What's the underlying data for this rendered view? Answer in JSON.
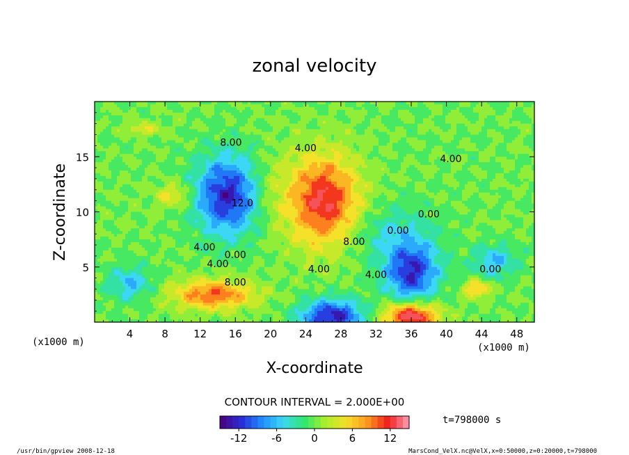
{
  "chart_data": {
    "type": "heatmap",
    "title": "zonal velocity",
    "xlabel": "X-coordinate",
    "ylabel": "Z-coordinate",
    "x_unit_label": "(x1000 m)",
    "z_unit_label": "(x1000 m)",
    "xlim": [
      0,
      50
    ],
    "ylim": [
      0,
      20
    ],
    "x_ticks": [
      4,
      8,
      12,
      16,
      20,
      24,
      28,
      32,
      36,
      40,
      44,
      48
    ],
    "y_ticks": [
      5,
      10,
      15
    ],
    "contour_interval_text": "CONTOUR INTERVAL = 2.000E+00",
    "contour_labels": [
      {
        "text": "8.00",
        "x": 15.5,
        "z": 16.0
      },
      {
        "text": "4.00",
        "x": 24.0,
        "z": 15.5
      },
      {
        "text": "4.00",
        "x": 40.5,
        "z": 14.5
      },
      {
        "text": "12.0",
        "x": 16.8,
        "z": 10.5
      },
      {
        "text": "0.00",
        "x": 34.5,
        "z": 8.0
      },
      {
        "text": "0.00",
        "x": 38.0,
        "z": 9.5
      },
      {
        "text": "8.00",
        "x": 29.5,
        "z": 7.0
      },
      {
        "text": "4.00",
        "x": 12.5,
        "z": 6.5
      },
      {
        "text": "0.00",
        "x": 16.0,
        "z": 5.8
      },
      {
        "text": "4.00",
        "x": 14.0,
        "z": 5.0
      },
      {
        "text": "4.00",
        "x": 25.5,
        "z": 4.5
      },
      {
        "text": "4.00",
        "x": 32.0,
        "z": 4.0
      },
      {
        "text": "8.00",
        "x": 16.0,
        "z": 3.3
      },
      {
        "text": "0.00",
        "x": 45.0,
        "z": 4.5
      }
    ],
    "features": [
      {
        "x": 26.0,
        "z": 11.0,
        "sx": 4.0,
        "sz": 4.0,
        "amp": 12.5
      },
      {
        "x": 15.0,
        "z": 11.5,
        "sx": 3.5,
        "sz": 3.5,
        "amp": -12.5
      },
      {
        "x": 36.0,
        "z": 4.5,
        "sx": 3.0,
        "sz": 2.5,
        "amp": -12.0
      },
      {
        "x": 36.0,
        "z": 0.5,
        "sx": 3.0,
        "sz": 1.2,
        "amp": 14.0
      },
      {
        "x": 27.0,
        "z": 0.5,
        "sx": 3.5,
        "sz": 1.5,
        "amp": -13.0
      },
      {
        "x": 13.5,
        "z": 2.5,
        "sx": 4.5,
        "sz": 1.3,
        "amp": 10.0
      },
      {
        "x": 4.0,
        "z": 3.5,
        "sx": 2.5,
        "sz": 1.5,
        "amp": -6.0
      },
      {
        "x": 45.5,
        "z": 5.5,
        "sx": 2.5,
        "sz": 1.5,
        "amp": -6.0
      },
      {
        "x": 43.5,
        "z": 3.0,
        "sx": 1.5,
        "sz": 0.8,
        "amp": 7.0
      },
      {
        "x": 9.0,
        "z": 11.5,
        "sx": 2.0,
        "sz": 1.0,
        "amp": 5.0
      },
      {
        "x": 5.5,
        "z": 17.5,
        "sx": 2.0,
        "sz": 0.6,
        "amp": 4.0
      },
      {
        "x": 34.0,
        "z": 8.0,
        "sx": 5.0,
        "sz": 2.5,
        "amp": -4.0
      },
      {
        "x": 20.0,
        "z": 12.0,
        "sx": 2.0,
        "sz": 3.0,
        "amp": 2.0
      }
    ],
    "colorbar": {
      "min": -15,
      "max": 15,
      "ticks": [
        -12,
        -6,
        0,
        6,
        12
      ]
    },
    "time_label": "t=798000 s",
    "footer_left": "/usr/bin/gpview  2008-12-18",
    "footer_right": "MarsCond_VelX.nc@VelX,x=0:50000,z=0:20000,t=798000"
  },
  "colors": {
    "stops": [
      "#4b007a",
      "#2a2ad6",
      "#1f8cff",
      "#3cd7f5",
      "#2ee86f",
      "#a8ef2a",
      "#f5e02a",
      "#ff9a1e",
      "#f01e1e",
      "#ff9fb4"
    ]
  }
}
